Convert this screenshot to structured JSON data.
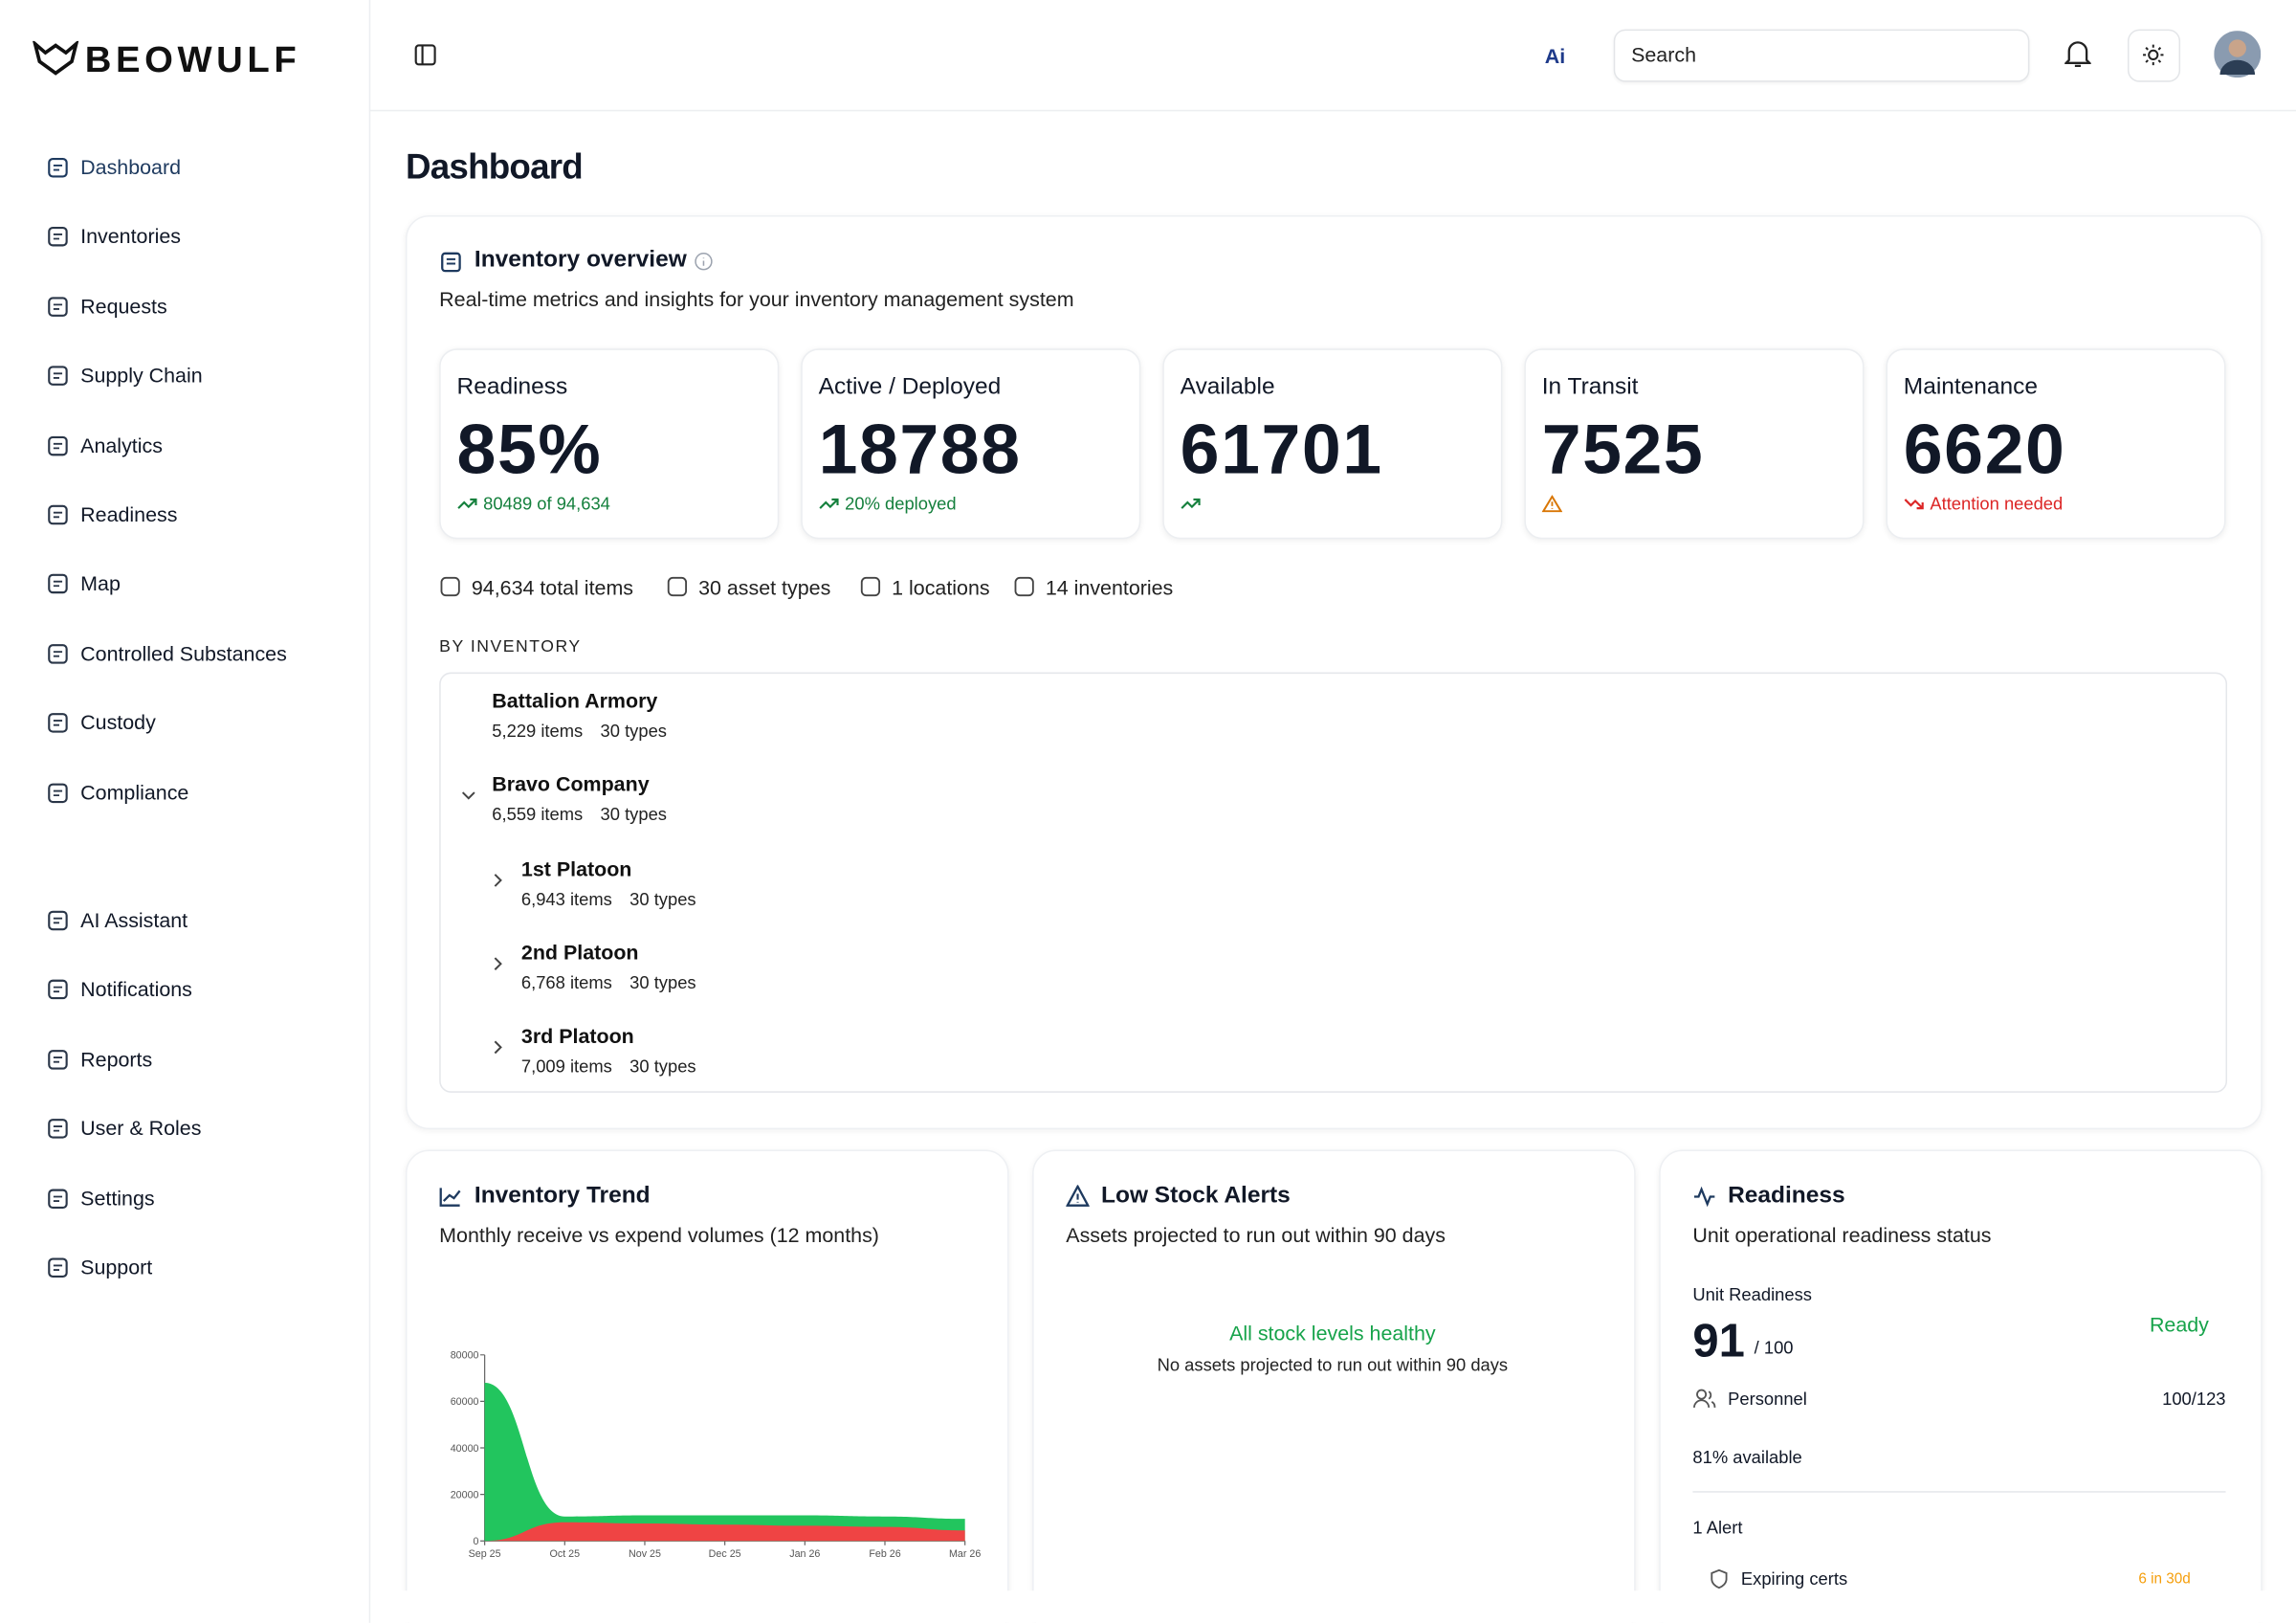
{
  "sidebar": {
    "logo": "BEOWULF",
    "nav_main": [
      "Dashboard",
      "Inventories",
      "Requests",
      "Supply Chain",
      "Analytics",
      "Readiness",
      "Map",
      "Controlled Substances",
      "Custody",
      "Compliance"
    ],
    "nav_secondary": [
      "AI Assistant",
      "Notifications",
      "Reports",
      "User & Roles",
      "Settings",
      "Support"
    ]
  },
  "header": {
    "search_placeholder": "Search"
  },
  "page_title": "Dashboard",
  "overview": {
    "title": "Inventory overview",
    "subtitle": "Real-time metrics and insights for your inventory management system",
    "stats": [
      {
        "label": "Readiness",
        "value": "85%",
        "note": "80489 of 94,634"
      },
      {
        "label": "Active / Deployed",
        "value": "18788",
        "note": "20% deployed"
      },
      {
        "label": "Available",
        "value": "61701"
      },
      {
        "label": "In Transit",
        "value": "7525"
      },
      {
        "label": "Maintenance",
        "value": "6620",
        "note": "Attention needed"
      }
    ],
    "summary": [
      "94,634 total items",
      "30 asset types",
      "1 locations",
      "14 inventories"
    ],
    "section_label": "BY INVENTORY",
    "inventories": [
      {
        "name": "Battalion Armory",
        "items": "5,229 items",
        "types": "30 types"
      },
      {
        "name": "Bravo Company",
        "items": "6,559 items",
        "types": "30 types",
        "children": [
          {
            "name": "1st Platoon",
            "items": "6,943 items",
            "types": "30 types"
          },
          {
            "name": "2nd Platoon",
            "items": "6,768 items",
            "types": "30 types"
          },
          {
            "name": "3rd Platoon",
            "items": "7,009 items",
            "types": "30 types"
          }
        ]
      }
    ]
  },
  "chart_data": {
    "type": "area",
    "title": "Inventory Trend",
    "subtitle": "Monthly receive vs expend volumes (12 months)",
    "categories": [
      "Sep 25",
      "Oct 25",
      "Nov 25",
      "Dec 25",
      "Jan 26",
      "Feb 26",
      "Mar 26"
    ],
    "series": [
      {
        "color": "#22c55e",
        "values": [
          68000,
          10500,
          11000,
          11000,
          11000,
          10500,
          9500
        ]
      },
      {
        "color": "#ef4444",
        "values": [
          0,
          8000,
          7500,
          7000,
          6500,
          6000,
          4500
        ]
      }
    ],
    "ylim": [
      0,
      80000
    ],
    "yticks": [
      0,
      20000,
      40000,
      60000,
      80000
    ]
  },
  "low_stock": {
    "title": "Low Stock Alerts",
    "subtitle": "Assets projected to run out within 90 days",
    "status": "All stock levels healthy",
    "message": "No assets projected to run out within 90 days"
  },
  "readiness": {
    "title": "Readiness",
    "subtitle": "Unit operational readiness status",
    "unit_label": "Unit Readiness",
    "score": "91",
    "max": "/ 100",
    "status": "Ready",
    "personnel_label": "Personnel",
    "personnel_value": "100/123",
    "availability": "81% available",
    "alerts_label": "1 Alert",
    "alert_name": "Expiring certs",
    "alert_detail": "6 in 30d"
  }
}
